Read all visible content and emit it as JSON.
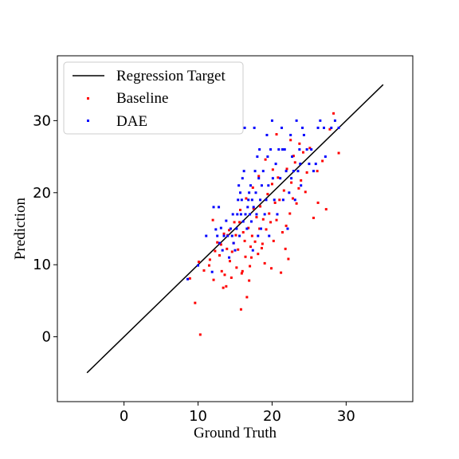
{
  "chart_data": {
    "type": "scatter",
    "xlabel": "Ground Truth",
    "ylabel": "Prediction",
    "xlim": [
      -9,
      39
    ],
    "ylim": [
      -9,
      39
    ],
    "xticks": [
      0,
      10,
      20,
      30
    ],
    "yticks": [
      0,
      10,
      20,
      30
    ],
    "grid": false,
    "legend_position": "top-left",
    "regression_line": {
      "name": "Regression Target",
      "color": "#000000",
      "x": [
        -5,
        35
      ],
      "y": [
        -5,
        35
      ]
    },
    "series": [
      {
        "name": "Baseline",
        "color": "#ff0000",
        "points": [
          [
            9.6,
            4.7
          ],
          [
            10.3,
            0.3
          ],
          [
            8.9,
            8.1
          ],
          [
            10.1,
            10.4
          ],
          [
            10.8,
            9.2
          ],
          [
            11.5,
            9.9
          ],
          [
            12.1,
            7.9
          ],
          [
            12.6,
            13.1
          ],
          [
            12.9,
            11.3
          ],
          [
            13.2,
            9.1
          ],
          [
            13.4,
            6.8
          ],
          [
            13.6,
            8.6
          ],
          [
            13.9,
            12.2
          ],
          [
            14.2,
            14.8
          ],
          [
            14.3,
            10.5
          ],
          [
            14.6,
            11.8
          ],
          [
            14.8,
            13.0
          ],
          [
            15.1,
            14.1
          ],
          [
            15.2,
            9.6
          ],
          [
            15.4,
            12.1
          ],
          [
            15.6,
            15.9
          ],
          [
            15.8,
            3.8
          ],
          [
            15.9,
            8.8
          ],
          [
            16.1,
            14.5
          ],
          [
            16.3,
            13.3
          ],
          [
            16.4,
            11.1
          ],
          [
            16.6,
            5.5
          ],
          [
            16.8,
            15.1
          ],
          [
            17.0,
            9.8
          ],
          [
            17.1,
            12.5
          ],
          [
            17.3,
            14.0
          ],
          [
            17.5,
            17.8
          ],
          [
            17.7,
            13.2
          ],
          [
            17.9,
            16.6
          ],
          [
            18.1,
            11.5
          ],
          [
            18.3,
            15.0
          ],
          [
            18.4,
            18.1
          ],
          [
            18.6,
            12.3
          ],
          [
            18.8,
            16.3
          ],
          [
            19.0,
            10.2
          ],
          [
            19.2,
            14.9
          ],
          [
            19.4,
            19.8
          ],
          [
            19.6,
            17.1
          ],
          [
            19.8,
            15.9
          ],
          [
            20.0,
            21.2
          ],
          [
            20.2,
            13.3
          ],
          [
            20.4,
            18.6
          ],
          [
            20.6,
            16.2
          ],
          [
            20.8,
            22.1
          ],
          [
            21.0,
            19.0
          ],
          [
            21.2,
            8.9
          ],
          [
            21.4,
            14.5
          ],
          [
            21.6,
            20.3
          ],
          [
            21.8,
            12.2
          ],
          [
            22.0,
            23.3
          ],
          [
            22.2,
            10.8
          ],
          [
            22.4,
            17.1
          ],
          [
            22.6,
            21.4
          ],
          [
            22.8,
            19.2
          ],
          [
            23.1,
            24.2
          ],
          [
            23.3,
            18.5
          ],
          [
            23.6,
            20.6
          ],
          [
            23.9,
            21.7
          ],
          [
            24.2,
            25.6
          ],
          [
            24.5,
            20.1
          ],
          [
            25.1,
            26.2
          ],
          [
            25.6,
            16.5
          ],
          [
            26.2,
            18.6
          ],
          [
            26.8,
            24.4
          ],
          [
            27.3,
            17.7
          ],
          [
            27.8,
            28.8
          ],
          [
            28.3,
            31.0
          ],
          [
            29.0,
            25.5
          ],
          [
            26.1,
            23.0
          ],
          [
            23.7,
            26.8
          ],
          [
            22.5,
            27.3
          ],
          [
            20.6,
            28.1
          ],
          [
            19.1,
            24.6
          ],
          [
            18.2,
            22.3
          ],
          [
            17.4,
            20.7
          ],
          [
            16.5,
            19.2
          ],
          [
            15.7,
            17.6
          ],
          [
            14.9,
            15.9
          ],
          [
            14.0,
            14.1
          ],
          [
            13.1,
            12.8
          ],
          [
            12.3,
            11.9
          ],
          [
            11.6,
            10.7
          ],
          [
            12.0,
            16.2
          ],
          [
            13.5,
            14.3
          ],
          [
            16.9,
            7.8
          ],
          [
            19.9,
            9.5
          ],
          [
            21.9,
            15.4
          ],
          [
            18.7,
            12.9
          ],
          [
            17.2,
            11.0
          ],
          [
            16.0,
            9.1
          ],
          [
            14.5,
            8.2
          ],
          [
            13.8,
            7.0
          ],
          [
            20.1,
            23.2
          ],
          [
            22.9,
            25.1
          ],
          [
            24.7,
            22.8
          ]
        ]
      },
      {
        "name": "DAE",
        "color": "#0000ff",
        "points": [
          [
            8.6,
            8.0
          ],
          [
            10.0,
            9.9
          ],
          [
            11.1,
            14.0
          ],
          [
            11.9,
            9.0
          ],
          [
            12.1,
            18.0
          ],
          [
            12.4,
            14.9
          ],
          [
            12.6,
            14.0
          ],
          [
            12.9,
            13.0
          ],
          [
            13.1,
            15.1
          ],
          [
            13.3,
            12.0
          ],
          [
            13.5,
            14.0
          ],
          [
            13.8,
            16.1
          ],
          [
            14.0,
            14.0
          ],
          [
            14.2,
            11.0
          ],
          [
            14.4,
            15.0
          ],
          [
            14.6,
            14.0
          ],
          [
            14.8,
            13.0
          ],
          [
            15.0,
            12.0
          ],
          [
            15.2,
            15.0
          ],
          [
            15.3,
            17.0
          ],
          [
            15.4,
            19.0
          ],
          [
            15.5,
            21.0
          ],
          [
            15.6,
            14.0
          ],
          [
            15.8,
            17.0
          ],
          [
            15.9,
            19.0
          ],
          [
            16.0,
            22.0
          ],
          [
            16.1,
            16.0
          ],
          [
            16.2,
            23.0
          ],
          [
            16.4,
            17.0
          ],
          [
            16.6,
            15.0
          ],
          [
            16.7,
            18.0
          ],
          [
            16.8,
            19.0
          ],
          [
            16.9,
            20.0
          ],
          [
            17.0,
            17.0
          ],
          [
            17.1,
            21.0
          ],
          [
            17.2,
            16.0
          ],
          [
            17.3,
            19.0
          ],
          [
            17.4,
            12.0
          ],
          [
            17.5,
            18.0
          ],
          [
            17.6,
            29.0
          ],
          [
            17.8,
            20.0
          ],
          [
            17.9,
            17.0
          ],
          [
            18.0,
            25.0
          ],
          [
            18.1,
            14.0
          ],
          [
            18.2,
            22.0
          ],
          [
            18.3,
            26.0
          ],
          [
            18.4,
            19.0
          ],
          [
            18.5,
            15.0
          ],
          [
            18.6,
            21.0
          ],
          [
            18.8,
            23.0
          ],
          [
            19.0,
            17.0
          ],
          [
            19.2,
            19.0
          ],
          [
            19.3,
            28.0
          ],
          [
            19.5,
            21.0
          ],
          [
            19.6,
            14.0
          ],
          [
            19.8,
            26.0
          ],
          [
            20.0,
            30.0
          ],
          [
            20.1,
            22.0
          ],
          [
            20.3,
            19.0
          ],
          [
            20.5,
            24.0
          ],
          [
            20.7,
            17.0
          ],
          [
            20.9,
            26.0
          ],
          [
            21.1,
            22.0
          ],
          [
            21.3,
            29.0
          ],
          [
            21.5,
            19.0
          ],
          [
            21.7,
            26.0
          ],
          [
            21.9,
            23.0
          ],
          [
            22.1,
            15.0
          ],
          [
            22.3,
            20.0
          ],
          [
            22.5,
            28.0
          ],
          [
            22.7,
            25.0
          ],
          [
            22.9,
            23.0
          ],
          [
            23.1,
            19.0
          ],
          [
            23.3,
            30.0
          ],
          [
            23.5,
            23.0
          ],
          [
            23.7,
            26.0
          ],
          [
            23.9,
            21.0
          ],
          [
            24.1,
            29.0
          ],
          [
            24.3,
            28.0
          ],
          [
            24.7,
            26.0
          ],
          [
            25.0,
            24.0
          ],
          [
            25.3,
            26.0
          ],
          [
            25.6,
            23.0
          ],
          [
            25.9,
            24.0
          ],
          [
            26.2,
            29.0
          ],
          [
            26.5,
            30.0
          ],
          [
            27.0,
            29.0
          ],
          [
            27.2,
            25.0
          ],
          [
            28.0,
            29.0
          ],
          [
            28.5,
            30.0
          ],
          [
            29.0,
            29.0
          ],
          [
            12.8,
            18.0
          ],
          [
            16.3,
            29.0
          ],
          [
            19.4,
            25.0
          ],
          [
            22.6,
            22.0
          ],
          [
            15.7,
            20.0
          ],
          [
            17.7,
            23.0
          ],
          [
            21.4,
            26.0
          ],
          [
            23.8,
            24.0
          ],
          [
            14.7,
            17.0
          ]
        ]
      }
    ]
  }
}
